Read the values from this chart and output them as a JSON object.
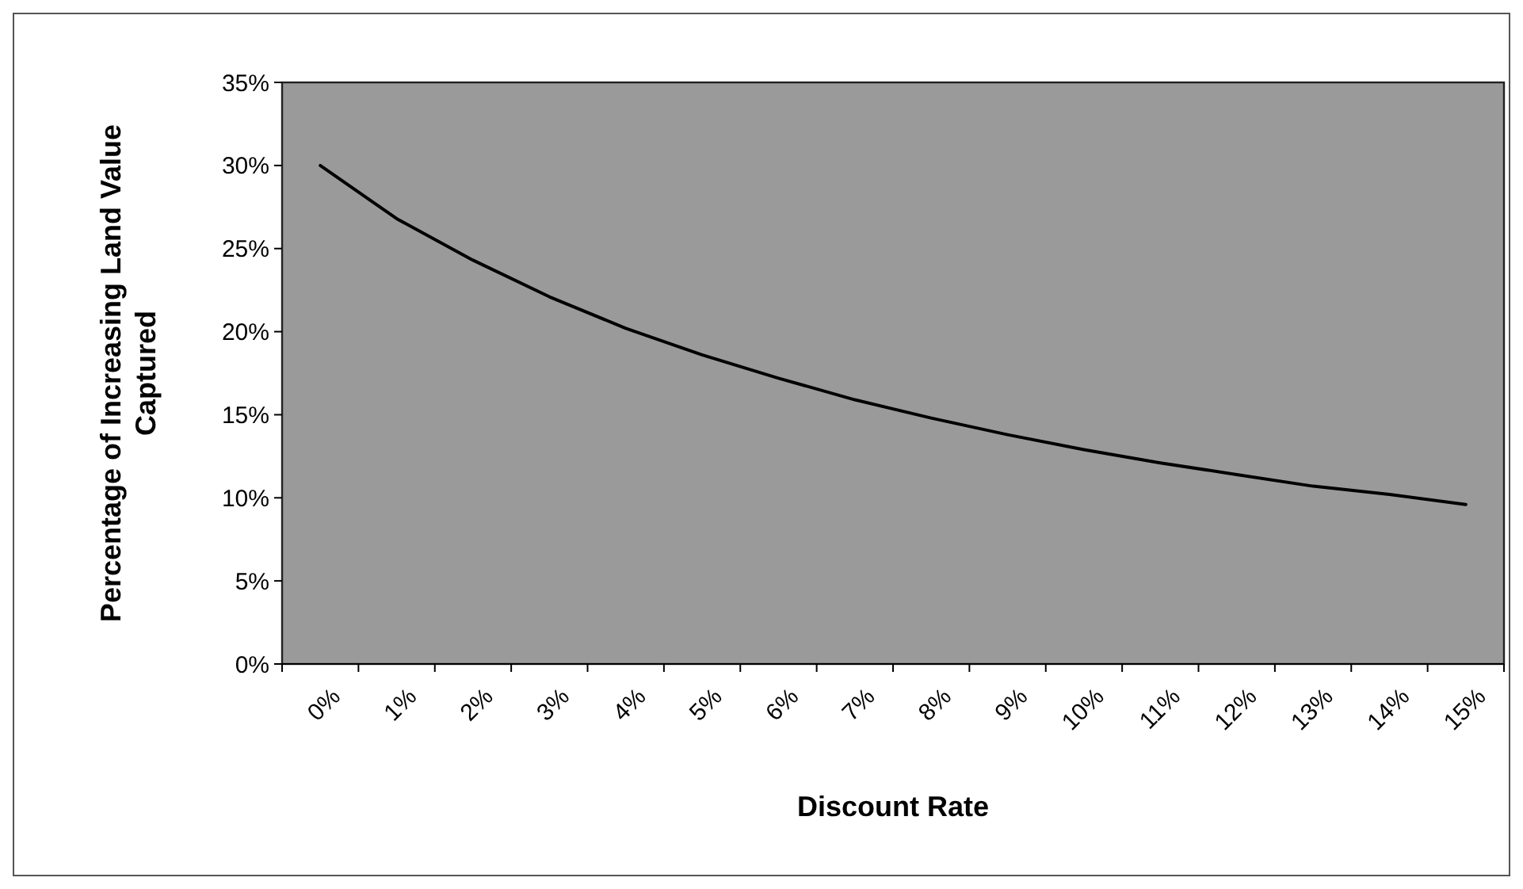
{
  "chart_data": {
    "type": "line",
    "xlabel": "Discount Rate",
    "ylabel": "Percentage of Increasing Land Value Captured",
    "categories": [
      "0%",
      "1%",
      "2%",
      "3%",
      "4%",
      "5%",
      "6%",
      "7%",
      "8%",
      "9%",
      "10%",
      "11%",
      "12%",
      "13%",
      "14%",
      "15%"
    ],
    "series": [
      {
        "color": "#000000",
        "values": [
          30.0,
          26.8,
          24.3,
          22.1,
          20.2,
          18.6,
          17.2,
          15.9,
          14.8,
          13.8,
          12.9,
          12.1,
          11.4,
          10.7,
          10.2,
          9.6
        ]
      }
    ],
    "ylim": [
      0,
      35
    ],
    "yticks": [
      {
        "value": 0,
        "label": "0%"
      },
      {
        "value": 5,
        "label": "5%"
      },
      {
        "value": 10,
        "label": "10%"
      },
      {
        "value": 15,
        "label": "15%"
      },
      {
        "value": 20,
        "label": "20%"
      },
      {
        "value": 25,
        "label": "25%"
      },
      {
        "value": 30,
        "label": "30%"
      },
      {
        "value": 35,
        "label": "35%"
      }
    ],
    "marker": "none",
    "line_style": "solid"
  }
}
